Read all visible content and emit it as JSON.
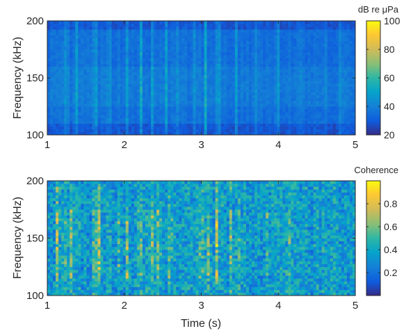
{
  "chart_data": [
    {
      "type": "heatmap",
      "title": "",
      "xlabel": "",
      "ylabel": "Frequency (kHz)",
      "xlim": [
        1,
        5
      ],
      "ylim": [
        100,
        200
      ],
      "x_ticks": [
        1,
        2,
        3,
        4,
        5
      ],
      "y_ticks": [
        100,
        150,
        200
      ],
      "colorbar": {
        "label": "dB re μPa",
        "range": [
          20,
          100
        ],
        "ticks": [
          20,
          40,
          60,
          80,
          100
        ],
        "colormap": "parula"
      },
      "background_level": 35,
      "strong_band_khz": [
        125,
        160
      ],
      "bright_columns_s": [
        {
          "t": 1.25,
          "level": 52
        },
        {
          "t": 1.38,
          "level": 48
        },
        {
          "t": 1.62,
          "level": 58
        },
        {
          "t": 1.8,
          "level": 50
        },
        {
          "t": 2.03,
          "level": 52
        },
        {
          "t": 2.22,
          "level": 55
        },
        {
          "t": 2.37,
          "level": 54
        },
        {
          "t": 2.55,
          "level": 53
        },
        {
          "t": 2.7,
          "level": 50
        },
        {
          "t": 2.92,
          "level": 52
        },
        {
          "t": 3.05,
          "level": 56
        },
        {
          "t": 3.22,
          "level": 58
        },
        {
          "t": 3.45,
          "level": 48
        },
        {
          "t": 3.7,
          "level": 46
        },
        {
          "t": 4.0,
          "level": 44
        },
        {
          "t": 4.3,
          "level": 44
        },
        {
          "t": 4.6,
          "level": 42
        },
        {
          "t": 4.8,
          "level": 42
        }
      ]
    },
    {
      "type": "heatmap",
      "title": "",
      "xlabel": "Time (s)",
      "ylabel": "Frequency (kHz)",
      "xlim": [
        1,
        5
      ],
      "ylim": [
        100,
        200
      ],
      "x_ticks": [
        1,
        2,
        3,
        4,
        5
      ],
      "y_ticks": [
        100,
        150,
        200
      ],
      "colorbar": {
        "label": "Coherence",
        "range": [
          0,
          1
        ],
        "ticks": [
          0.2,
          0.4,
          0.6,
          0.8
        ],
        "colormap": "parula"
      },
      "background_level": 0.35,
      "bright_columns_s": [
        {
          "t": 1.12,
          "level": 0.85
        },
        {
          "t": 1.22,
          "level": 0.75
        },
        {
          "t": 1.3,
          "level": 0.85
        },
        {
          "t": 1.62,
          "level": 0.85
        },
        {
          "t": 1.68,
          "level": 0.9
        },
        {
          "t": 1.92,
          "level": 0.7
        },
        {
          "t": 2.03,
          "level": 0.92
        },
        {
          "t": 2.2,
          "level": 0.8
        },
        {
          "t": 2.35,
          "level": 0.9
        },
        {
          "t": 2.45,
          "level": 0.85
        },
        {
          "t": 2.6,
          "level": 0.8
        },
        {
          "t": 3.0,
          "level": 0.92
        },
        {
          "t": 3.1,
          "level": 0.88
        },
        {
          "t": 3.2,
          "level": 0.92
        },
        {
          "t": 3.38,
          "level": 0.7
        },
        {
          "t": 3.5,
          "level": 0.65
        },
        {
          "t": 3.85,
          "level": 0.6
        },
        {
          "t": 4.15,
          "level": 0.55
        },
        {
          "t": 4.5,
          "level": 0.5
        },
        {
          "t": 4.75,
          "level": 0.5
        }
      ]
    }
  ]
}
